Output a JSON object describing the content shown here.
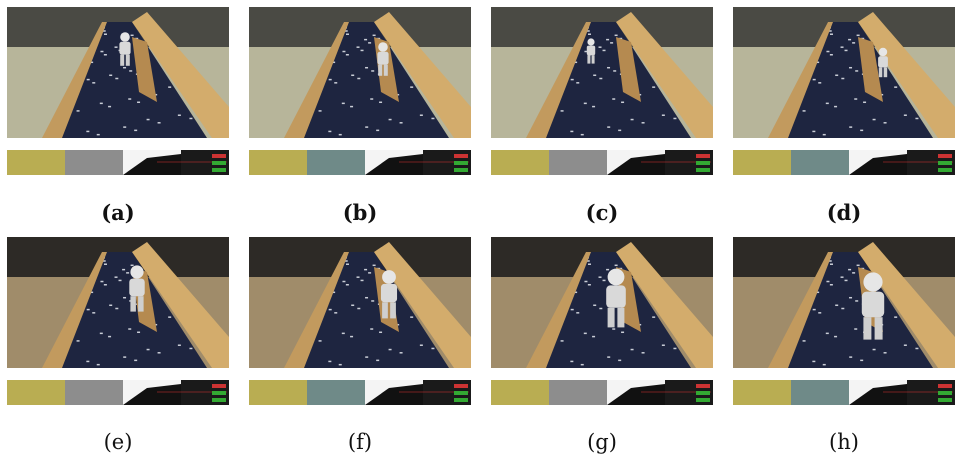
{
  "subfigures": [
    {
      "label": "(a)"
    },
    {
      "label": "(b)"
    },
    {
      "label": "(c)"
    },
    {
      "label": "(d)"
    },
    {
      "label": "(e)"
    },
    {
      "label": "(f)"
    },
    {
      "label": "(g)"
    },
    {
      "label": "(h)"
    }
  ]
}
